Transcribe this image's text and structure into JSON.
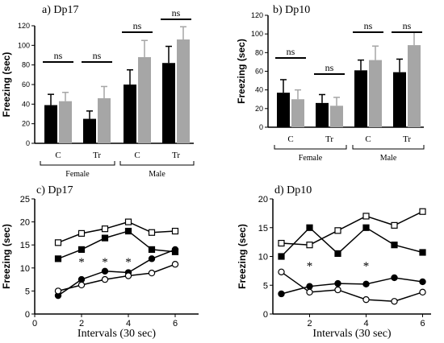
{
  "chart_data": [
    {
      "type": "bar",
      "title": "a) Dp17",
      "ylabel": "Freezing (sec)",
      "ylim": [
        0,
        120
      ],
      "yticks": [
        0,
        20,
        40,
        60,
        80,
        100,
        120
      ],
      "categories": [
        "C",
        "Tr",
        "C",
        "Tr"
      ],
      "groups": [
        {
          "label": "Female",
          "categories": [
            0,
            1
          ]
        },
        {
          "label": "Male",
          "categories": [
            2,
            3
          ]
        }
      ],
      "series": [
        {
          "color": "#000000",
          "values": [
            39,
            25,
            60,
            82
          ],
          "errors": [
            11,
            8,
            15,
            17
          ]
        },
        {
          "color": "#a6a6a6",
          "values": [
            43,
            46,
            88,
            106
          ],
          "errors": [
            9,
            12,
            17,
            13
          ]
        }
      ],
      "annotations": [
        "ns",
        "ns",
        "ns",
        "ns"
      ]
    },
    {
      "type": "bar",
      "title": "b) Dp10",
      "ylabel": "Freezing (sec)",
      "ylim": [
        0,
        120
      ],
      "yticks": [
        0,
        20,
        40,
        60,
        80,
        100,
        120
      ],
      "categories": [
        "C",
        "Tr",
        "C",
        "Tr"
      ],
      "groups": [
        {
          "label": "Female",
          "categories": [
            0,
            1
          ]
        },
        {
          "label": "Male",
          "categories": [
            2,
            3
          ]
        }
      ],
      "series": [
        {
          "color": "#000000",
          "values": [
            37,
            26,
            61,
            59
          ],
          "errors": [
            14,
            9,
            11,
            14
          ]
        },
        {
          "color": "#a6a6a6",
          "values": [
            30,
            23,
            72,
            88
          ],
          "errors": [
            10,
            9,
            15,
            14
          ]
        }
      ],
      "annotations": [
        "ns",
        "ns",
        "ns",
        "ns"
      ]
    },
    {
      "type": "line",
      "title": "c) Dp17",
      "ylabel": "Freezing (sec)",
      "xlabel": "Intervals  (30 sec)",
      "xlim": [
        0,
        7
      ],
      "ylim": [
        0,
        25
      ],
      "xticks": [
        0,
        2,
        4,
        6
      ],
      "yticks": [
        0,
        5,
        10,
        15,
        20,
        25
      ],
      "x": [
        1,
        2,
        3,
        4,
        5,
        6
      ],
      "series": [
        {
          "marker": "open-square",
          "values": [
            15.5,
            17.5,
            18.5,
            20,
            17.7,
            18
          ]
        },
        {
          "marker": "filled-square",
          "values": [
            12,
            14,
            16.5,
            18,
            14,
            13.5
          ]
        },
        {
          "marker": "filled-circle",
          "values": [
            4,
            7.5,
            9.3,
            9,
            12,
            14
          ]
        },
        {
          "marker": "open-circle",
          "values": [
            5,
            6.3,
            7.5,
            8.3,
            8.9,
            10.8
          ]
        }
      ],
      "stars": [
        {
          "x": 2,
          "y": 11.5,
          "text": "*"
        },
        {
          "x": 3,
          "y": 11.5,
          "text": "*"
        },
        {
          "x": 4,
          "y": 11.5,
          "text": "*"
        }
      ]
    },
    {
      "type": "line",
      "title": "d) Dp10",
      "ylabel": "Freezing (sec)",
      "xlabel": "Intervals  (30 sec)",
      "xlim": [
        0.7,
        6.3
      ],
      "ylim": [
        0,
        20
      ],
      "xticks": [
        2,
        4,
        6
      ],
      "yticks": [
        0,
        5,
        10,
        15,
        20
      ],
      "x": [
        1,
        2,
        3,
        4,
        5,
        6
      ],
      "series": [
        {
          "marker": "open-square",
          "values": [
            12.3,
            12,
            14.5,
            17,
            15.4,
            17.8
          ]
        },
        {
          "marker": "filled-square",
          "values": [
            10,
            15,
            10.5,
            15,
            12,
            10.7
          ]
        },
        {
          "marker": "filled-circle",
          "values": [
            3.5,
            4.8,
            5.3,
            5.2,
            6.3,
            5.6
          ]
        },
        {
          "marker": "open-circle",
          "values": [
            7.3,
            3.8,
            4.2,
            2.5,
            2.2,
            3.8
          ]
        }
      ],
      "stars": [
        {
          "x": 2,
          "y": 8.5,
          "text": "*"
        },
        {
          "x": 4,
          "y": 8.5,
          "text": "*"
        }
      ]
    }
  ]
}
